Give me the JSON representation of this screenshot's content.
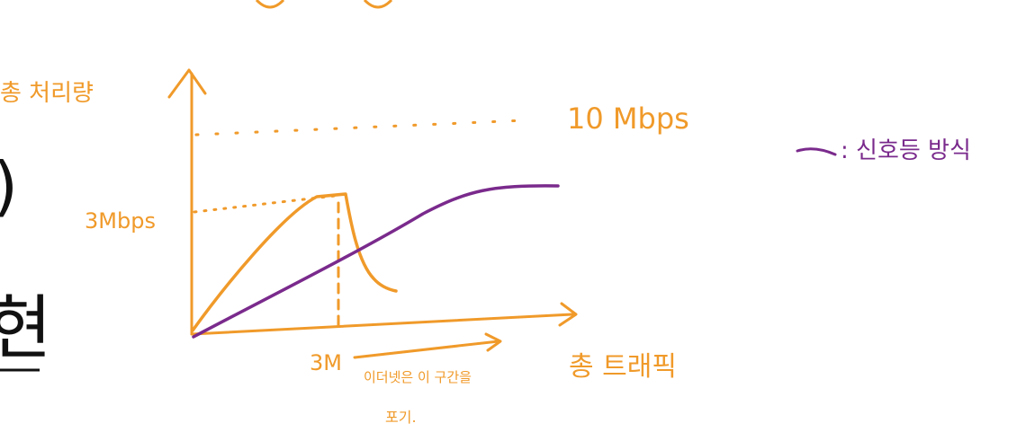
{
  "colors": {
    "orange": "#f09a2a",
    "purple": "#7a2a8c",
    "black": "#111111"
  },
  "y_axis_label": "총 처리량",
  "x_axis_label": "총 트래픽",
  "max_label": "10 Mbps",
  "peak_label": "3Mbps",
  "x_mark_label": "3M",
  "note_line1": "이더넷은 이 구간을",
  "note_line2": "포기.",
  "legend_label": ": 신호등 방식",
  "edge_glyph_paren": ")",
  "edge_glyph_char": "현"
}
